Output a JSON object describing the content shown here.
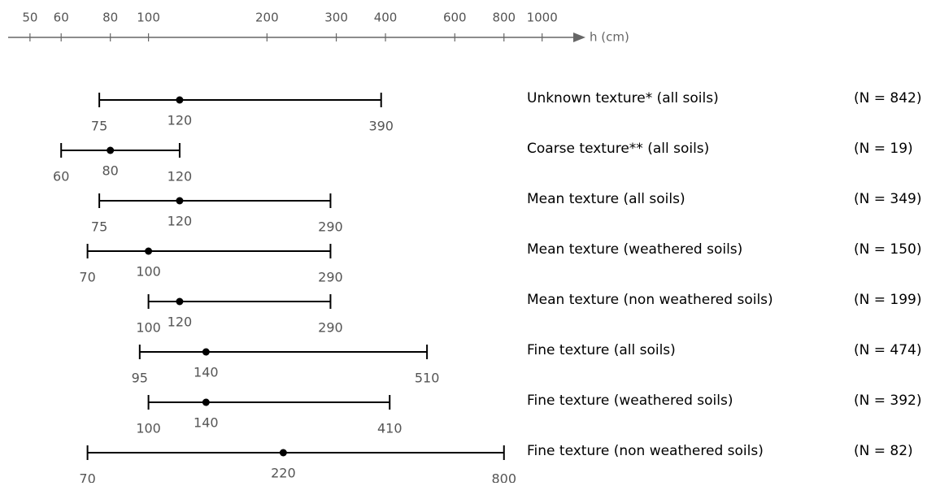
{
  "chart_data": {
    "type": "range",
    "x_label": "h (cm)",
    "xscale": "log",
    "xlim": [
      44,
      1200
    ],
    "xticks": [
      50,
      60,
      80,
      100,
      200,
      300,
      400,
      600,
      800,
      1000
    ],
    "color": "#000000",
    "categories": [
      "Unknown texture* (all soils)",
      "Coarse texture** (all soils)",
      "Mean texture (all soils)",
      "Mean texture (weathered soils)",
      "Mean texture (non weathered soils)",
      "Fine texture (all soils)",
      "Fine texture (weathered soils)",
      "Fine texture (non weathered soils)"
    ],
    "n_labels": [
      "(N = 842)",
      "(N = 19)",
      "(N = 349)",
      "(N = 150)",
      "(N = 199)",
      "(N = 474)",
      "(N = 392)",
      "(N = 82)"
    ],
    "low": [
      75,
      60,
      75,
      70,
      100,
      95,
      100,
      70
    ],
    "median": [
      120,
      80,
      120,
      100,
      120,
      140,
      140,
      220
    ],
    "high": [
      390,
      120,
      290,
      290,
      290,
      510,
      410,
      800
    ]
  }
}
